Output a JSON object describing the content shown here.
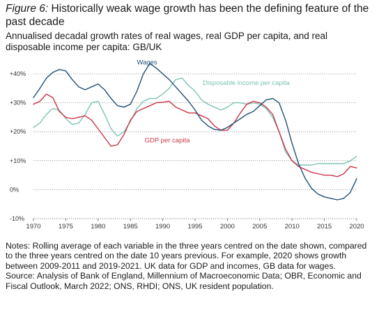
{
  "header": {
    "figure_label": "Figure 6:",
    "title": "Historically weak wage growth has been the defining feature of the past decade",
    "subtitle": "Annualised decadal growth rates of real wages, real GDP per capita, and real disposable income per capita: GB/UK"
  },
  "notes": {
    "text": "Notes: Rolling average of each variable in the three years centred on the date shown, compared to the three years centred on the date 10 years previous. For example, 2020 shows growth between 2009-2011 and 2019-2021. UK data for GDP and incomes, GB data for wages.",
    "source": "Source: Analysis of Bank of England, Millennium of Macroeconomic Data; OBR, Economic and Fiscal Outlook, March 2022; ONS, RHDI; ONS, UK resident population."
  },
  "chart_data": {
    "type": "line",
    "xlim": [
      1970,
      2020
    ],
    "ylim": [
      -10,
      40
    ],
    "x_ticks": [
      "1970",
      "1975",
      "1980",
      "1985",
      "1990",
      "1995",
      "2000",
      "2005",
      "2010",
      "2015",
      "2020"
    ],
    "y_ticks": [
      "+40%",
      "+30%",
      "+20%",
      "+10%",
      "0%",
      "-10%"
    ],
    "y_tick_values": [
      40,
      30,
      20,
      10,
      0,
      -10
    ],
    "grid": "horizontal dotted",
    "colors": {
      "wages": "#1f4e79",
      "disposable": "#7cc3b4",
      "gdp": "#cc3344",
      "axis": "#555555"
    },
    "series": [
      {
        "name": "Wages",
        "color": "#1f4e79",
        "x": [
          1970,
          1971,
          1972,
          1973,
          1974,
          1975,
          1976,
          1977,
          1978,
          1979,
          1980,
          1981,
          1982,
          1983,
          1984,
          1985,
          1986,
          1987,
          1988,
          1989,
          1990,
          1991,
          1992,
          1993,
          1994,
          1995,
          1996,
          1997,
          1998,
          1999,
          2000,
          2001,
          2002,
          2003,
          2004,
          2005,
          2006,
          2007,
          2008,
          2009,
          2010,
          2011,
          2012,
          2013,
          2014,
          2015,
          2016,
          2017,
          2018,
          2019,
          2020
        ],
        "values": [
          31.8,
          35,
          38.5,
          40.5,
          41.5,
          41,
          38,
          35.5,
          34.5,
          35.5,
          36.5,
          34.5,
          31.5,
          29,
          28.5,
          29.5,
          34,
          40,
          43.5,
          42,
          40,
          38,
          35.5,
          33,
          30.5,
          27.5,
          24,
          22,
          20.8,
          20.5,
          21.5,
          23,
          24.5,
          26,
          27,
          29,
          31,
          31.5,
          30,
          24,
          16,
          9,
          4,
          0.5,
          -1.5,
          -2.5,
          -3,
          -3.5,
          -3,
          -1,
          3.8
        ]
      },
      {
        "name": "Disposable income per capita",
        "color": "#7cc3b4",
        "x": [
          1970,
          1971,
          1972,
          1973,
          1974,
          1975,
          1976,
          1977,
          1978,
          1979,
          1980,
          1981,
          1982,
          1983,
          1984,
          1985,
          1986,
          1987,
          1988,
          1989,
          1990,
          1991,
          1992,
          1993,
          1994,
          1995,
          1996,
          1997,
          1998,
          1999,
          2000,
          2001,
          2002,
          2003,
          2004,
          2005,
          2006,
          2007,
          2008,
          2009,
          2010,
          2011,
          2012,
          2013,
          2014,
          2015,
          2016,
          2017,
          2018,
          2019,
          2020
        ],
        "values": [
          21.5,
          23,
          26,
          28,
          27.5,
          24.5,
          22.5,
          23,
          26,
          30,
          30.5,
          26,
          21,
          18.5,
          20,
          23.5,
          28,
          30.5,
          31.5,
          31.5,
          33,
          35,
          38,
          38.5,
          36,
          34,
          31,
          29.5,
          28.5,
          27.5,
          28.5,
          30,
          30,
          29.5,
          30,
          29.5,
          28,
          25,
          20,
          13,
          10,
          8.5,
          8.5,
          8.5,
          9,
          9,
          9,
          9,
          9,
          10,
          11.5
        ]
      },
      {
        "name": "GDP per capita",
        "color": "#cc3344",
        "x": [
          1970,
          1971,
          1972,
          1973,
          1974,
          1975,
          1976,
          1977,
          1978,
          1979,
          1980,
          1981,
          1982,
          1983,
          1984,
          1985,
          1986,
          1987,
          1988,
          1989,
          1990,
          1991,
          1992,
          1993,
          1994,
          1995,
          1996,
          1997,
          1998,
          1999,
          2000,
          2001,
          2002,
          2003,
          2004,
          2005,
          2006,
          2007,
          2008,
          2009,
          2010,
          2011,
          2012,
          2013,
          2014,
          2015,
          2016,
          2017,
          2018,
          2019,
          2020
        ],
        "values": [
          29.5,
          30.5,
          33,
          31.8,
          27,
          25,
          24.5,
          25,
          25.5,
          24,
          21,
          18,
          15,
          15.5,
          19,
          24,
          27,
          28,
          29,
          30,
          30.2,
          30.5,
          28.5,
          27.5,
          26.5,
          26.5,
          25.5,
          24.5,
          22,
          20.5,
          20.5,
          23,
          26.5,
          29.5,
          30.5,
          30,
          28.5,
          26,
          20,
          14,
          10,
          8,
          7,
          6,
          5.5,
          5,
          5,
          4.5,
          5.5,
          8,
          7.5
        ]
      }
    ],
    "labels": {
      "wages": "Wages",
      "disposable": "Disposable income per capita",
      "gdp": "GDP per capita"
    }
  }
}
